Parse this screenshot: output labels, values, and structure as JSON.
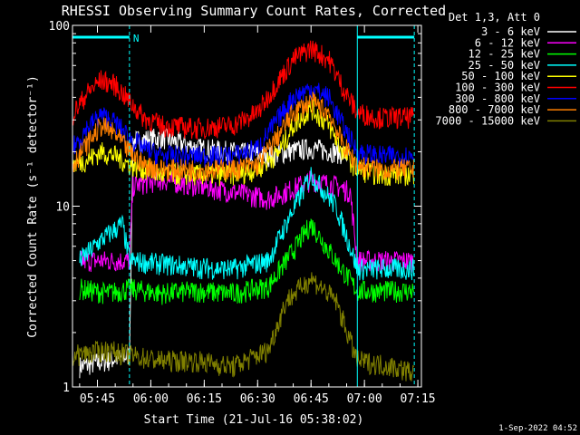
{
  "footer": {
    "date": "1-Sep-2022 04:52"
  },
  "chart_data": {
    "type": "line",
    "title": "RHESSI Observing Summary Count Rates, Corrected",
    "xlabel": "Start Time (21-Jul-16 05:38:02)",
    "ylabel": "Corrected Count Rate (s⁻¹ detector⁻¹)",
    "yscale": "log",
    "ylim": [
      1,
      100
    ],
    "xlim_minutes": [
      0,
      98
    ],
    "x_unit": "minutes since start time",
    "x_ticks": [
      {
        "label": "05:45",
        "t": 7
      },
      {
        "label": "06:00",
        "t": 22
      },
      {
        "label": "06:15",
        "t": 37
      },
      {
        "label": "06:30",
        "t": 52
      },
      {
        "label": "06:45",
        "t": 67
      },
      {
        "label": "07:00",
        "t": 82
      },
      {
        "label": "07:15",
        "t": 97
      }
    ],
    "y_ticks": [
      {
        "label": "1",
        "value": 1
      },
      {
        "label": "10",
        "value": 10
      },
      {
        "label": "100",
        "value": 100
      }
    ],
    "legend_title": "Det 1,3, Att 0",
    "legend_position": "top-right outside",
    "annotations": [
      {
        "label": "N",
        "t_start": 0,
        "t_end": 16,
        "color": "#00ffff"
      },
      {
        "label": "",
        "t_start": 80,
        "t_end": 96,
        "color": "#00ffff"
      }
    ],
    "series": [
      {
        "name": "3 - 6 keV",
        "color": "#ffffff",
        "t": [
          2,
          10,
          16,
          17,
          25,
          35,
          45,
          55,
          60,
          67,
          74,
          78,
          80
        ],
        "values": [
          1.3,
          1.4,
          1.5,
          23,
          24,
          21,
          20,
          19,
          20,
          21,
          20,
          19,
          null
        ]
      },
      {
        "name": "6 - 12 keV",
        "color": "#ff00ff",
        "t": [
          2,
          10,
          16,
          17,
          25,
          35,
          45,
          55,
          60,
          67,
          74,
          78,
          80,
          90,
          96
        ],
        "values": [
          5,
          5,
          5,
          13,
          14,
          13,
          12,
          11,
          12,
          14,
          13,
          12,
          5,
          5,
          5
        ]
      },
      {
        "name": "12 - 25 keV",
        "color": "#00ff00",
        "t": [
          2,
          10,
          16,
          25,
          35,
          45,
          55,
          60,
          67,
          74,
          80,
          90,
          96
        ],
        "values": [
          3.5,
          3.3,
          3.5,
          3.3,
          3.4,
          3.3,
          3.6,
          5,
          8,
          5,
          3.4,
          3.4,
          3.4
        ]
      },
      {
        "name": "25 - 50 keV",
        "color": "#00ffff",
        "t": [
          2,
          8,
          14,
          16,
          25,
          35,
          45,
          55,
          60,
          67,
          74,
          78,
          80,
          90,
          96
        ],
        "values": [
          5,
          6.5,
          8,
          5,
          4.8,
          4.6,
          4.5,
          5,
          8,
          15,
          10,
          6,
          4.5,
          4.5,
          4.5
        ]
      },
      {
        "name": "50 - 100 keV",
        "color": "#ffff00",
        "t": [
          0,
          4,
          8,
          12,
          16,
          20,
          25,
          35,
          45,
          52,
          58,
          62,
          67,
          72,
          76,
          80,
          86,
          92,
          96
        ],
        "values": [
          17,
          18,
          20,
          19,
          17,
          16,
          15,
          15,
          15,
          16,
          20,
          28,
          35,
          28,
          20,
          16,
          15,
          15,
          15
        ]
      },
      {
        "name": "100 - 300 keV",
        "color": "#ff0000",
        "t": [
          0,
          4,
          8,
          12,
          16,
          20,
          25,
          35,
          45,
          52,
          58,
          62,
          67,
          72,
          76,
          80,
          86,
          92,
          96
        ],
        "values": [
          32,
          42,
          50,
          47,
          38,
          31,
          28,
          27,
          28,
          33,
          50,
          65,
          75,
          65,
          45,
          33,
          31,
          31,
          31
        ]
      },
      {
        "name": "300 - 800 keV",
        "color": "#0000ff",
        "t": [
          0,
          4,
          8,
          12,
          16,
          20,
          25,
          35,
          45,
          52,
          58,
          62,
          67,
          72,
          76,
          80,
          86,
          92,
          96
        ],
        "values": [
          21,
          27,
          32,
          29,
          24,
          21,
          19,
          19,
          19,
          21,
          31,
          40,
          45,
          40,
          28,
          20,
          19,
          19,
          19
        ]
      },
      {
        "name": "800 - 7000 keV",
        "color": "#ff8000",
        "t": [
          0,
          4,
          8,
          12,
          16,
          20,
          25,
          35,
          45,
          52,
          58,
          62,
          67,
          72,
          76,
          80,
          86,
          92,
          96
        ],
        "values": [
          17,
          22,
          28,
          25,
          20,
          17,
          16,
          16,
          16,
          17,
          25,
          33,
          38,
          33,
          22,
          17,
          16,
          16,
          16
        ]
      },
      {
        "name": "7000 - 15000 keV",
        "color": "#808000",
        "t": [
          0,
          10,
          16,
          25,
          35,
          45,
          55,
          60,
          67,
          74,
          80,
          90,
          96
        ],
        "values": [
          1.5,
          1.6,
          1.5,
          1.4,
          1.4,
          1.3,
          1.6,
          3,
          4,
          3,
          1.4,
          1.3,
          1.2
        ]
      }
    ]
  }
}
